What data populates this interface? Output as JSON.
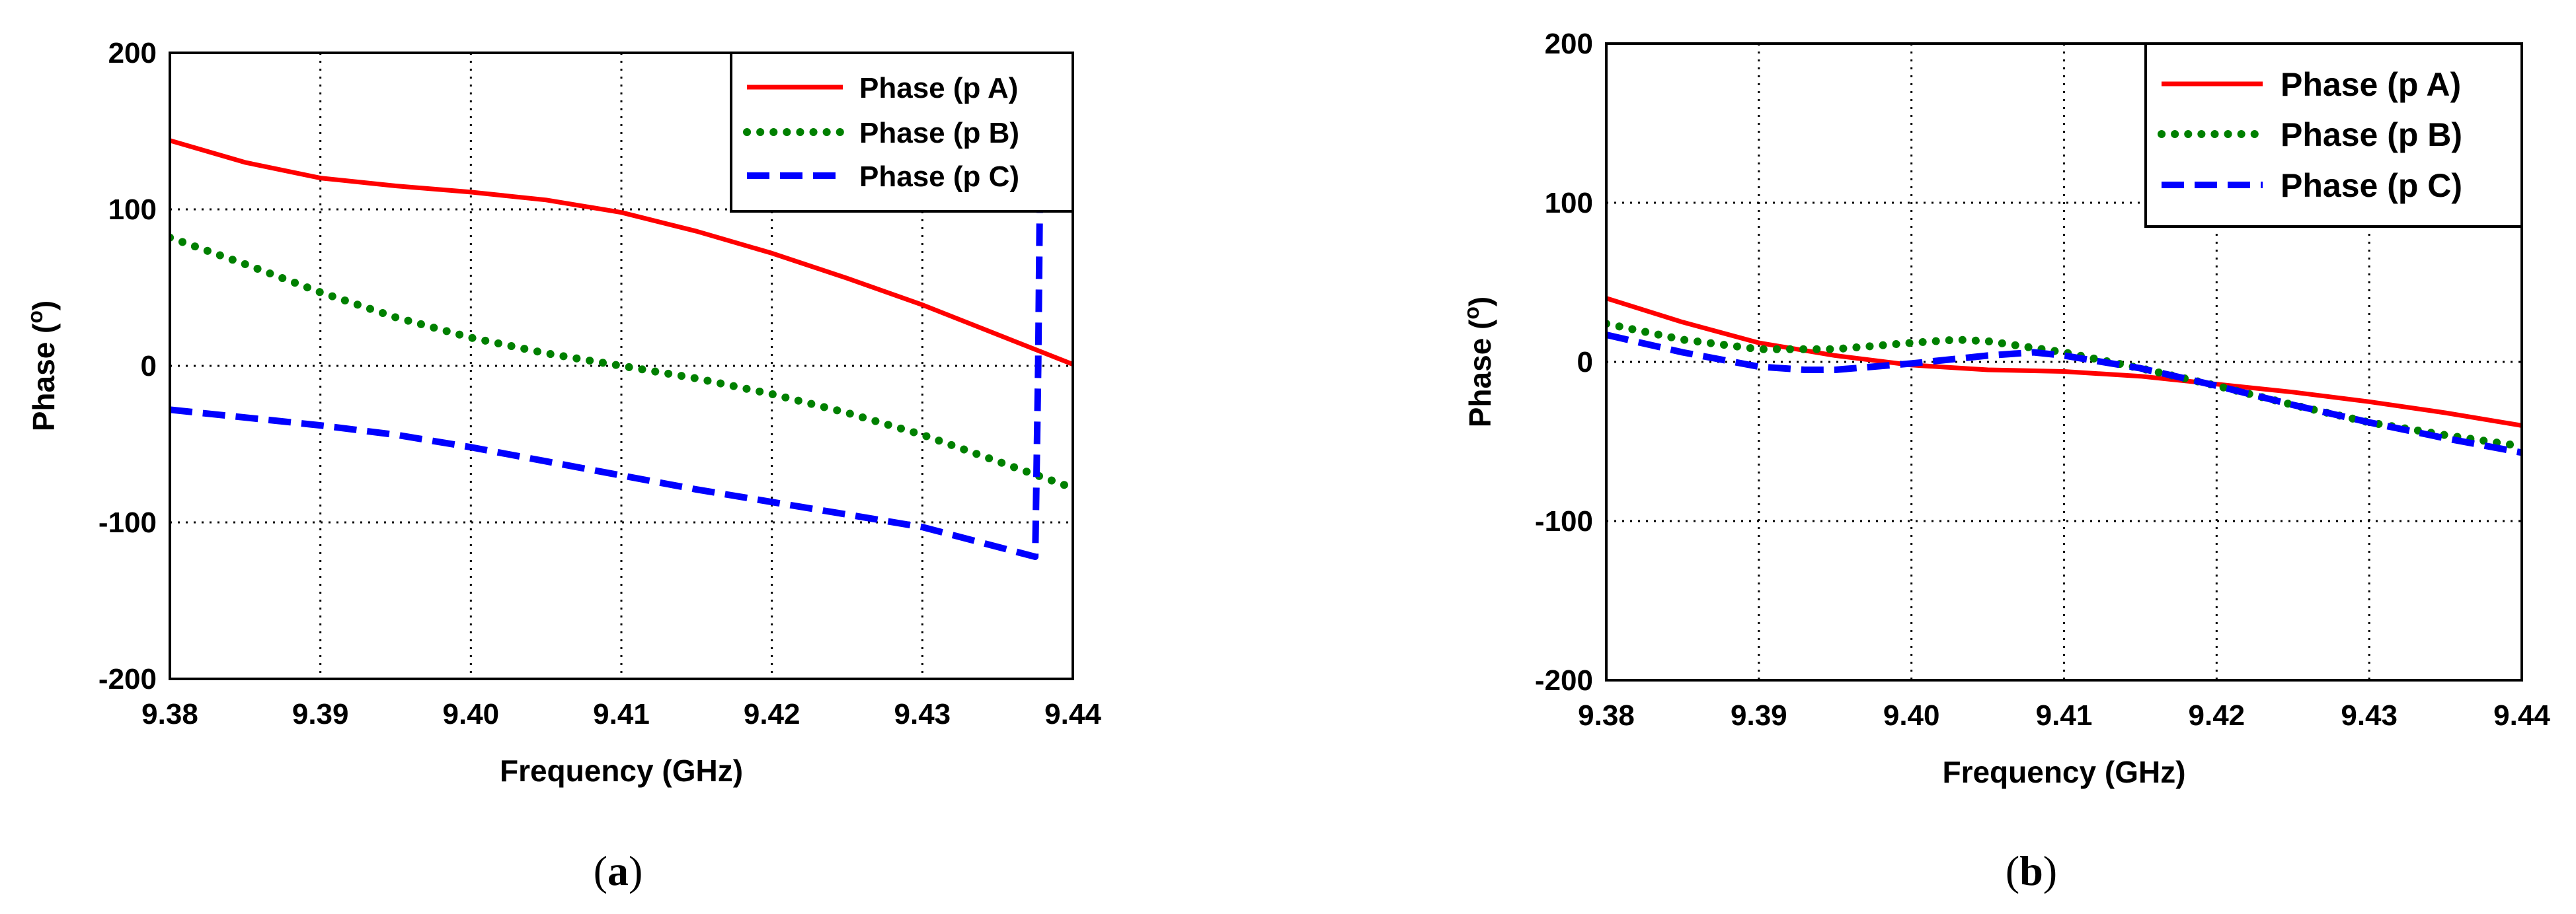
{
  "chart_data": [
    {
      "type": "line",
      "panel_label": "a",
      "title": "",
      "xlabel": "Frequency (GHz)",
      "ylabel": "Phase (",
      "ylabel_unit": "o",
      "ylabel_close": ")",
      "xlim": [
        9.38,
        9.44
      ],
      "ylim": [
        -200,
        200
      ],
      "x_ticks": [
        "9.38",
        "9.39",
        "9.40",
        "9.41",
        "9.42",
        "9.43",
        "9.44"
      ],
      "y_ticks": [
        "200",
        "100",
        "0",
        "-100",
        "-200"
      ],
      "grid": true,
      "legend": "top-right",
      "series": [
        {
          "name": "Phase (p A)",
          "color": "#ff0000",
          "style": "solid",
          "x": [
            9.38,
            9.385,
            9.39,
            9.395,
            9.4,
            9.405,
            9.41,
            9.415,
            9.42,
            9.425,
            9.43,
            9.435,
            9.44
          ],
          "y": [
            144,
            130,
            120,
            115,
            111,
            106,
            98,
            86,
            72,
            56,
            39,
            20,
            1
          ]
        },
        {
          "name": "Phase (p B)",
          "color": "#008000",
          "style": "dotted",
          "x": [
            9.38,
            9.385,
            9.39,
            9.395,
            9.4,
            9.405,
            9.41,
            9.415,
            9.42,
            9.425,
            9.43,
            9.435,
            9.44
          ],
          "y": [
            82,
            65,
            47,
            31,
            18,
            8,
            0,
            -8,
            -18,
            -30,
            -44,
            -61,
            -78
          ]
        },
        {
          "name": "Phase (p C)",
          "color": "#0000ff",
          "style": "dashed",
          "x": [
            9.38,
            9.385,
            9.39,
            9.395,
            9.4,
            9.405,
            9.41,
            9.415,
            9.42,
            9.425,
            9.43,
            9.4375,
            9.4377,
            9.4378
          ],
          "y": [
            -28,
            -33,
            -38,
            -44,
            -52,
            -61,
            -70,
            -79,
            -87,
            -95,
            -103,
            -122,
            0,
            100
          ]
        }
      ]
    },
    {
      "type": "line",
      "panel_label": "b",
      "title": "",
      "xlabel": "Frequency (GHz)",
      "ylabel": "Phase (",
      "ylabel_unit": "o",
      "ylabel_close": ")",
      "xlim": [
        9.38,
        9.44
      ],
      "ylim": [
        -200,
        200
      ],
      "x_ticks": [
        "9.38",
        "9.39",
        "9.40",
        "9.41",
        "9.42",
        "9.43",
        "9.44"
      ],
      "y_ticks": [
        "200",
        "100",
        "0",
        "-100",
        "-200"
      ],
      "grid": true,
      "legend": "top-right",
      "series": [
        {
          "name": "Phase (p A)",
          "color": "#ff0000",
          "style": "solid",
          "x": [
            9.38,
            9.385,
            9.39,
            9.395,
            9.4,
            9.405,
            9.41,
            9.415,
            9.42,
            9.425,
            9.43,
            9.435,
            9.44
          ],
          "y": [
            40,
            25,
            12,
            4,
            -2,
            -5,
            -6,
            -9,
            -14,
            -19,
            -25,
            -32,
            -40
          ]
        },
        {
          "name": "Phase (p B)",
          "color": "#008000",
          "style": "dotted",
          "x": [
            9.38,
            9.385,
            9.39,
            9.395,
            9.4,
            9.403,
            9.405,
            9.41,
            9.415,
            9.42,
            9.425,
            9.43,
            9.435,
            9.44
          ],
          "y": [
            24,
            14,
            8,
            8,
            12,
            14,
            13,
            6,
            -4,
            -15,
            -27,
            -38,
            -46,
            -53
          ]
        },
        {
          "name": "Phase (p C)",
          "color": "#0000ff",
          "style": "dashed",
          "x": [
            9.38,
            9.385,
            9.39,
            9.393,
            9.395,
            9.4,
            9.405,
            9.408,
            9.41,
            9.415,
            9.42,
            9.425,
            9.43,
            9.435,
            9.44
          ],
          "y": [
            17,
            6,
            -3,
            -5,
            -5,
            -1,
            4,
            6,
            4,
            -4,
            -15,
            -27,
            -38,
            -48,
            -57
          ]
        }
      ]
    }
  ],
  "captions": [
    "a",
    "b"
  ]
}
